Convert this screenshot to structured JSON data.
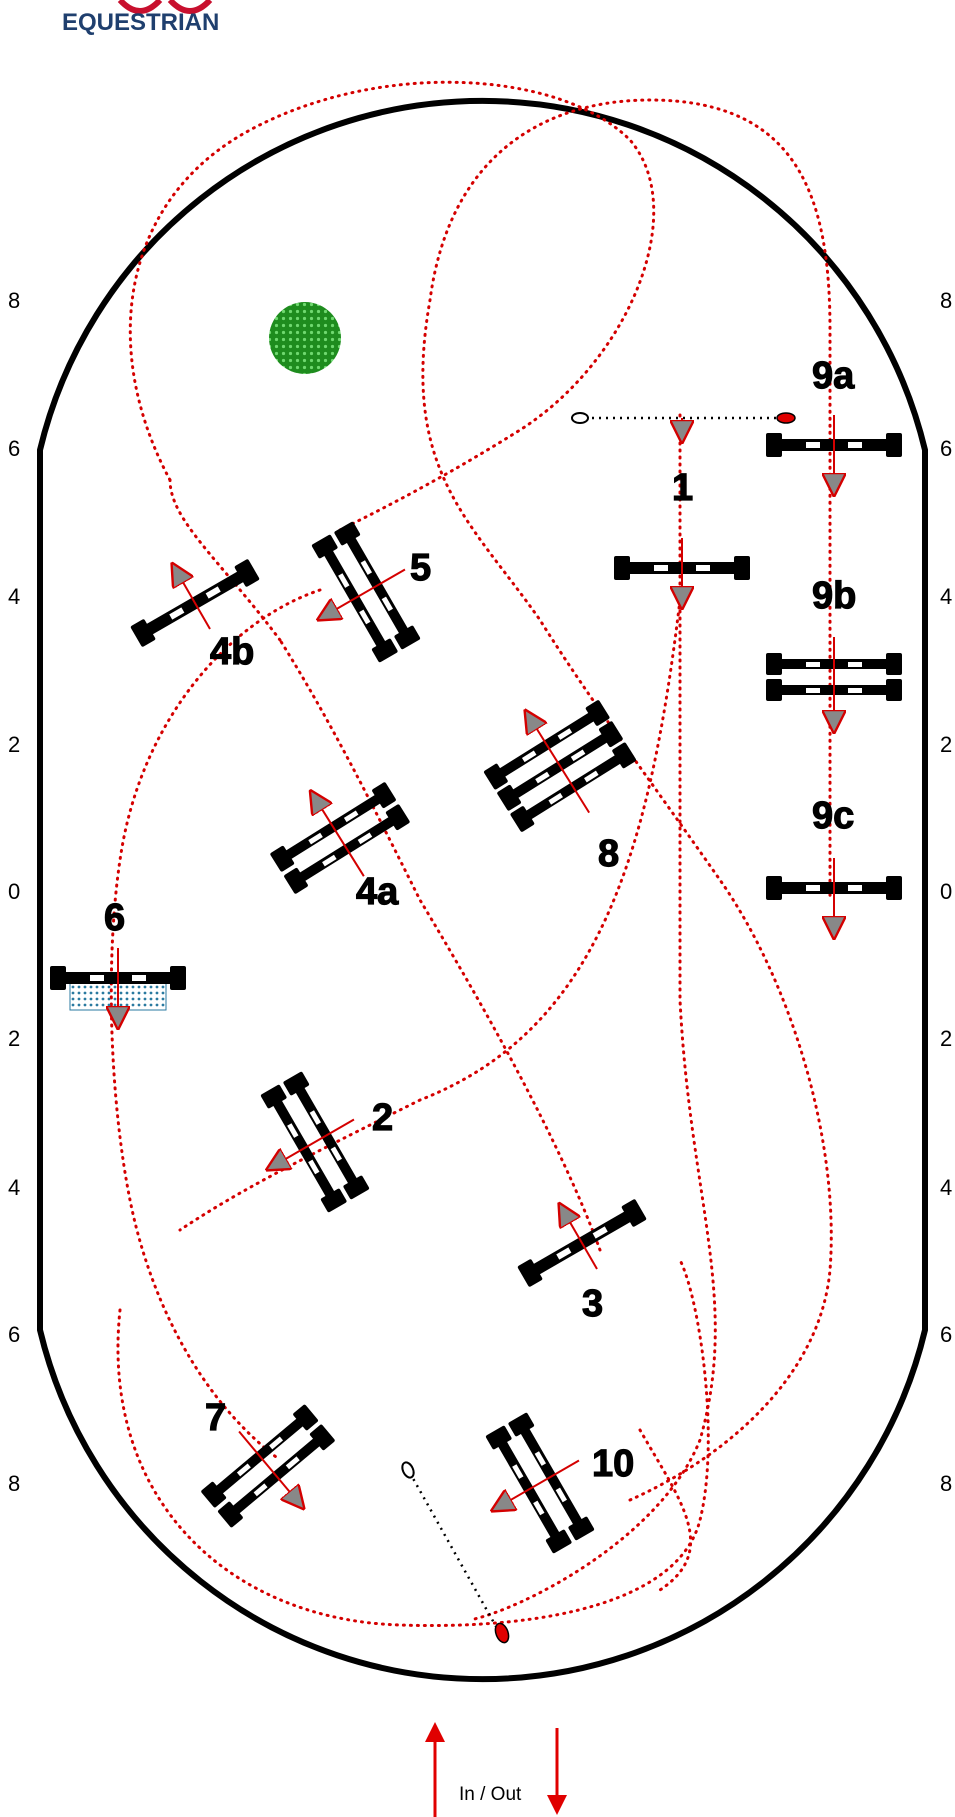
{
  "logo": {
    "text": "EQUESTRIAN",
    "color": "#1f3f6e",
    "accent": "#c8102e"
  },
  "scale_marks": [
    "8",
    "6",
    "4",
    "2",
    "0",
    "2",
    "4",
    "6",
    "8"
  ],
  "arena": {
    "border_color": "#000000",
    "route_color": "#d40000"
  },
  "fences": [
    {
      "label": "1"
    },
    {
      "label": "2"
    },
    {
      "label": "3"
    },
    {
      "label": "4a"
    },
    {
      "label": "4b"
    },
    {
      "label": "5"
    },
    {
      "label": "6"
    },
    {
      "label": "7"
    },
    {
      "label": "8"
    },
    {
      "label": "9a"
    },
    {
      "label": "9b"
    },
    {
      "label": "9c"
    },
    {
      "label": "10"
    }
  ],
  "in_out_label": "In / Out",
  "water_color": "#a8dcec",
  "bush_color": "#1e8c1e"
}
